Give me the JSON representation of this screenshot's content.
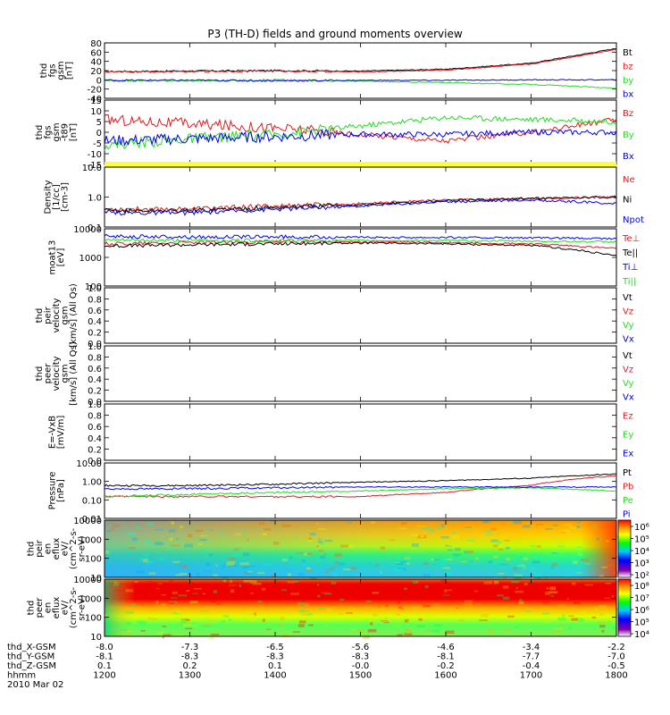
{
  "title": "P3 (TH-D) fields and ground moments overview",
  "colors": {
    "black": "#000000",
    "red": "#e41a1c",
    "green": "#22dd22",
    "blue": "#0000ee",
    "yellow": "#ffff33"
  },
  "panels": [
    {
      "ylabel": [
        "thd",
        "fgs",
        "gsm",
        "[nT]"
      ],
      "ticks": [
        "80",
        "60",
        "40",
        "20",
        "0",
        "-20",
        "-40"
      ],
      "legend": [
        {
          "text": "Bt",
          "color": "black"
        },
        {
          "text": "bz",
          "color": "red"
        },
        {
          "text": "by",
          "color": "green"
        },
        {
          "text": "bx",
          "color": "blue"
        }
      ]
    },
    {
      "ylabel": [
        "thd",
        "fgs",
        "gsm",
        "-t89",
        "[nT]"
      ],
      "ticks": [
        "15",
        "10",
        "5",
        "0",
        "-5",
        "-10",
        "-15"
      ],
      "legend": [
        {
          "text": "Bz",
          "color": "red"
        },
        {
          "text": "By",
          "color": "green"
        },
        {
          "text": "Bx",
          "color": "blue"
        }
      ]
    },
    {
      "ylabel": [
        "Density",
        "[1/cc]",
        "[cm-3]"
      ],
      "ticks": [
        "10.0",
        "1.0",
        "0.1"
      ],
      "legend": [
        {
          "text": "Ne",
          "color": "red"
        },
        {
          "text": "Ni",
          "color": "black"
        },
        {
          "text": "Npot",
          "color": "blue"
        }
      ]
    },
    {
      "ylabel": [
        "moat13",
        "[eV]"
      ],
      "ticks": [
        "10000",
        "1000",
        "100"
      ],
      "legend": [
        {
          "text": "Te⊥",
          "color": "red"
        },
        {
          "text": "Te||",
          "color": "black"
        },
        {
          "text": "Ti⊥",
          "color": "blue"
        },
        {
          "text": "Ti||",
          "color": "green"
        }
      ]
    },
    {
      "ylabel": [
        "thd",
        "peir",
        "velocity",
        "gsm",
        "[km/s] (All Qs)"
      ],
      "ticks": [
        "1.0",
        "0.8",
        "0.6",
        "0.4",
        "0.2",
        "0.0"
      ],
      "legend": [
        {
          "text": "Vt",
          "color": "black"
        },
        {
          "text": "Vz",
          "color": "red"
        },
        {
          "text": "Vy",
          "color": "green"
        },
        {
          "text": "Vx",
          "color": "blue"
        }
      ]
    },
    {
      "ylabel": [
        "thd",
        "peer",
        "velocity",
        "gsm",
        "[km/s] (All Qs)"
      ],
      "ticks": [
        "1.0",
        "0.8",
        "0.6",
        "0.4",
        "0.2",
        "0.0"
      ],
      "legend": [
        {
          "text": "Vt",
          "color": "black"
        },
        {
          "text": "Vz",
          "color": "red"
        },
        {
          "text": "Vy",
          "color": "green"
        },
        {
          "text": "Vx",
          "color": "blue"
        }
      ]
    },
    {
      "ylabel": [
        "E=-VxB",
        "[mV/m]"
      ],
      "ticks": [
        "1.0",
        "0.8",
        "0.6",
        "0.4",
        "0.2",
        "0.0"
      ],
      "legend": [
        {
          "text": "Ez",
          "color": "red"
        },
        {
          "text": "Ey",
          "color": "green"
        },
        {
          "text": "Ex",
          "color": "blue"
        }
      ]
    },
    {
      "ylabel": [
        "Pressure",
        "[nPa]"
      ],
      "ticks": [
        "10.00",
        "1.00",
        "0.10",
        "0.01"
      ],
      "legend": [
        {
          "text": "Pt",
          "color": "black"
        },
        {
          "text": "Pb",
          "color": "red"
        },
        {
          "text": "Pe",
          "color": "green"
        },
        {
          "text": "Pi",
          "color": "blue"
        }
      ]
    },
    {
      "ylabel": [
        "thd",
        "peir",
        "en",
        "eflux",
        "eV/",
        "(cm^2-s-",
        "sr-eV)"
      ],
      "ticks": [
        "10000",
        "1000",
        "100",
        "10"
      ],
      "colorbar": [
        "10⁶",
        "10⁵",
        "10⁴",
        "10³",
        "10²"
      ]
    },
    {
      "ylabel": [
        "thd",
        "peer",
        "en",
        "eflux",
        "eV/",
        "(cm^2-s-",
        "sr-eV)"
      ],
      "ticks": [
        "10000",
        "1000",
        "100",
        "10"
      ],
      "colorbar": [
        "10⁸",
        "10⁷",
        "10⁶",
        "10⁵",
        "10⁴"
      ]
    }
  ],
  "footer": {
    "rows": [
      {
        "label": "thd_X-GSM",
        "values": [
          "-8.0",
          "-7.3",
          "-6.5",
          "-5.6",
          "-4.6",
          "-3.4",
          "-2.2"
        ]
      },
      {
        "label": "thd_Y-GSM",
        "values": [
          "-8.1",
          "-8.3",
          "-8.3",
          "-8.3",
          "-8.1",
          "-7.7",
          "-7.0"
        ]
      },
      {
        "label": "thd_Z-GSM",
        "values": [
          "0.1",
          "0.2",
          "0.1",
          "-0.0",
          "-0.2",
          "-0.4",
          "-0.5"
        ]
      },
      {
        "label": "hhmm",
        "values": [
          "1200",
          "1300",
          "1400",
          "1500",
          "1600",
          "1700",
          "1800"
        ]
      }
    ],
    "date": "2010 Mar 02"
  },
  "chart_data": {
    "type": "line",
    "title": "P3 (TH-D) fields and ground moments overview",
    "x": [
      "1200",
      "1300",
      "1400",
      "1500",
      "1600",
      "1700",
      "1800"
    ],
    "xlabel": "hhmm",
    "series": [
      {
        "name": "Bt",
        "panel": 0,
        "values": [
          18,
          19,
          20,
          19,
          23,
          36,
          68
        ]
      },
      {
        "name": "bz",
        "panel": 0,
        "values": [
          17,
          18,
          19,
          17,
          21,
          34,
          66
        ]
      },
      {
        "name": "by",
        "panel": 0,
        "values": [
          -2,
          -2,
          0,
          -3,
          -6,
          -10,
          -18
        ]
      },
      {
        "name": "bx",
        "panel": 0,
        "values": [
          -1,
          -1,
          -2,
          -1,
          -1,
          0,
          0
        ]
      },
      {
        "name": "Bz",
        "panel": 1,
        "values": [
          6,
          4,
          2,
          -1,
          -4,
          0,
          6
        ]
      },
      {
        "name": "By",
        "panel": 1,
        "values": [
          -6,
          -3,
          -1,
          3,
          7,
          6,
          5
        ]
      },
      {
        "name": "Bx",
        "panel": 1,
        "values": [
          -4,
          -3,
          -2,
          -1,
          -1,
          0,
          0
        ]
      },
      {
        "name": "Ne",
        "panel": 2,
        "values": [
          0.4,
          0.4,
          0.5,
          0.6,
          0.8,
          0.9,
          1.0
        ]
      },
      {
        "name": "Ni",
        "panel": 2,
        "values": [
          0.35,
          0.35,
          0.45,
          0.55,
          0.75,
          0.9,
          1.0
        ]
      },
      {
        "name": "Npot",
        "panel": 2,
        "values": [
          0.3,
          0.3,
          0.4,
          0.5,
          0.7,
          0.8,
          0.6
        ]
      },
      {
        "name": "Te⊥",
        "panel": 3,
        "values": [
          3000,
          3300,
          3500,
          3500,
          3300,
          3000,
          2000
        ]
      },
      {
        "name": "Te||",
        "panel": 3,
        "values": [
          2500,
          2800,
          3000,
          3200,
          3000,
          2600,
          1100
        ]
      },
      {
        "name": "Ti⊥",
        "panel": 3,
        "values": [
          5500,
          5200,
          5200,
          5000,
          5000,
          4800,
          4500
        ]
      },
      {
        "name": "Ti||",
        "panel": 3,
        "values": [
          4000,
          3900,
          3900,
          3900,
          3900,
          3700,
          3500
        ]
      },
      {
        "name": "Pt",
        "panel": 7,
        "values": [
          0.6,
          0.6,
          0.7,
          0.9,
          1.1,
          1.5,
          2.5
        ]
      },
      {
        "name": "Pb",
        "panel": 7,
        "values": [
          0.15,
          0.15,
          0.15,
          0.15,
          0.25,
          0.6,
          2.0
        ]
      },
      {
        "name": "Pe",
        "panel": 7,
        "values": [
          0.15,
          0.2,
          0.25,
          0.3,
          0.4,
          0.45,
          0.3
        ]
      },
      {
        "name": "Pi",
        "panel": 7,
        "values": [
          0.4,
          0.4,
          0.45,
          0.5,
          0.5,
          0.5,
          0.5
        ]
      }
    ]
  }
}
